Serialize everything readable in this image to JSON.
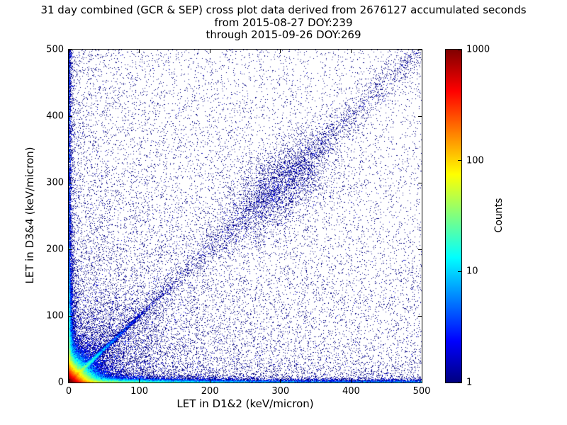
{
  "figure": {
    "background": "#ffffff"
  },
  "chart_data": {
    "type": "scatter",
    "title": "31 day combined (GCR & SEP) cross plot data derived from 2676127 accumulated seconds",
    "subtitle": [
      "from 2015-08-27 DOY:239",
      "through 2015-09-26 DOY:269"
    ],
    "xlabel": "LET in D1&2 (keV/micron)",
    "ylabel": "LET in D3&4 (keV/micron)",
    "xlim": [
      0,
      500
    ],
    "ylim": [
      0,
      500
    ],
    "xticks": [
      0,
      100,
      200,
      300,
      400,
      500
    ],
    "yticks": [
      0,
      100,
      200,
      300,
      400,
      500
    ],
    "grid": false,
    "legend": "none",
    "point_color_single_count": "#000080",
    "colorbar": {
      "label": "Counts",
      "scale": "log",
      "min": 1,
      "max": 1000,
      "tick_labels": [
        "1",
        "10",
        "100",
        "1000"
      ],
      "colormap": "jet",
      "stops": [
        {
          "pos": 0.0,
          "color": "#000080"
        },
        {
          "pos": 0.125,
          "color": "#0000ff"
        },
        {
          "pos": 0.375,
          "color": "#00ffff"
        },
        {
          "pos": 0.625,
          "color": "#ffff00"
        },
        {
          "pos": 0.875,
          "color": "#ff0000"
        },
        {
          "pos": 1.0,
          "color": "#800000"
        }
      ]
    },
    "description": "2D log-color-scaled histogram of coincident LET in detectors D1&2 vs D3&4: extremely dense hot (red/yellow/green) core at the origin, bright cyan y=x diagonal ridge out to ~60 keV/micron with sparse diagonal continuation, dense thin bands hugging both axes out to 500, a diffuse navy cloud near (300,300), and sparse single-count navy points scattered over the whole plane (densest in the lower-left).",
    "distribution": {
      "seed": 42,
      "n": 200000,
      "components": [
        {
          "kind": "exp2",
          "w": 0.625,
          "sx": 9,
          "sy": 9
        },
        {
          "kind": "diag",
          "w": 0.035,
          "scale": 28,
          "noise": 1.5
        },
        {
          "kind": "diag",
          "w": 0.015,
          "scale": 500,
          "noise": 10,
          "uniform": true
        },
        {
          "kind": "bandx",
          "w": 0.08,
          "scale": 70,
          "thick": 2.5
        },
        {
          "kind": "bandx",
          "w": 0.035,
          "thick": 1.8,
          "uniform": true
        },
        {
          "kind": "bandy",
          "w": 0.05,
          "scale": 55,
          "thick": 2.5
        },
        {
          "kind": "bandy",
          "w": 0.015,
          "thick": 1.8,
          "uniform": true
        },
        {
          "kind": "blob",
          "w": 0.015,
          "cx": 300,
          "cy": 295,
          "spread": 26,
          "corr": 32
        },
        {
          "kind": "fan",
          "w": 0.045,
          "scale": 90
        },
        {
          "kind": "uniform",
          "w": 0.085,
          "xbias": 1.3,
          "ybias": 1.6
        }
      ]
    }
  }
}
